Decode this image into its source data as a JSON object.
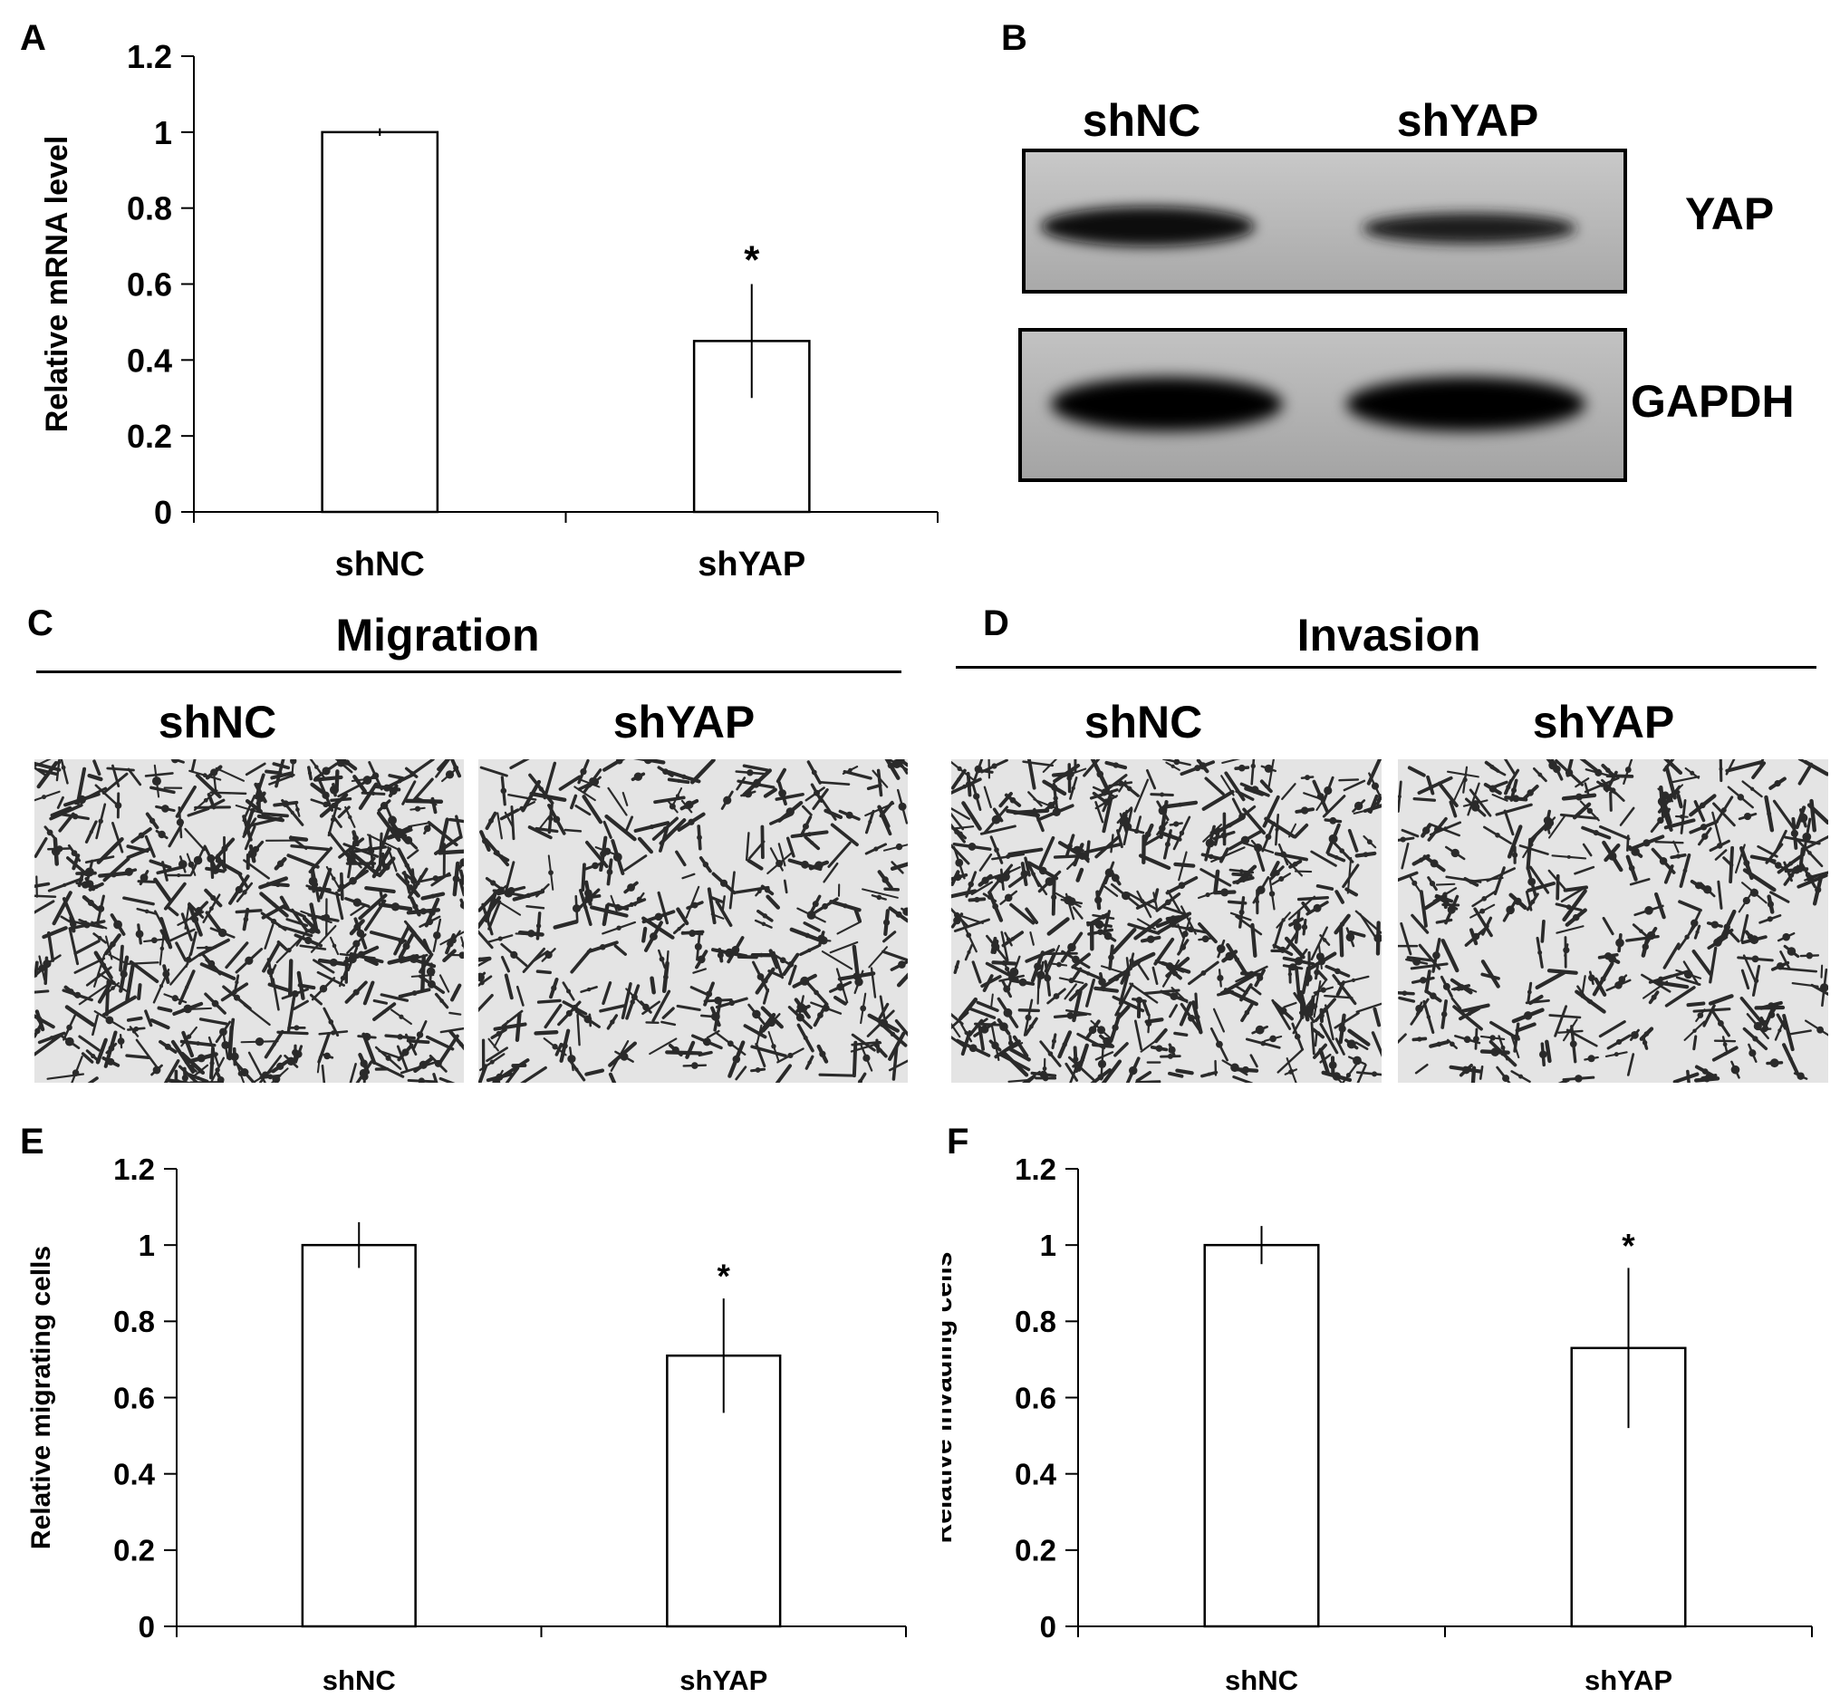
{
  "panels": {
    "A": {
      "letter": "A",
      "chart": {
        "type": "bar",
        "categories": [
          "shNC",
          "shYAP"
        ],
        "values": [
          1.0,
          0.45
        ],
        "errors": [
          0.01,
          0.15
        ],
        "significance": [
          "",
          "*"
        ],
        "ylabel": "Relative  mRNA level",
        "ylim": [
          0,
          1.2
        ],
        "yticks": [
          "0",
          "0.2",
          "0.4",
          "0.6",
          "0.8",
          "1",
          "1.2"
        ]
      }
    },
    "B": {
      "letter": "B",
      "lanes": [
        "shNC",
        "shYAP"
      ],
      "bands": [
        {
          "label": "YAP",
          "intensity": [
            0.9,
            0.75
          ]
        },
        {
          "label": "GAPDH",
          "intensity": [
            1.0,
            1.0
          ]
        }
      ]
    },
    "C": {
      "letter": "C",
      "title": "Migration",
      "lanes": [
        "shNC",
        "shYAP"
      ],
      "density": [
        1.0,
        0.7
      ]
    },
    "D": {
      "letter": "D",
      "title": "Invasion",
      "lanes": [
        "shNC",
        "shYAP"
      ],
      "density": [
        1.0,
        0.72
      ]
    },
    "E": {
      "letter": "E",
      "chart": {
        "type": "bar",
        "categories": [
          "shNC",
          "shYAP"
        ],
        "values": [
          1.0,
          0.71
        ],
        "errors": [
          0.06,
          0.15
        ],
        "significance": [
          "",
          "*"
        ],
        "ylabel": "Relative migrating cells",
        "ylim": [
          0,
          1.2
        ],
        "yticks": [
          "0",
          "0.2",
          "0.4",
          "0.6",
          "0.8",
          "1",
          "1.2"
        ]
      }
    },
    "F": {
      "letter": "F",
      "chart": {
        "type": "bar",
        "categories": [
          "shNC",
          "shYAP"
        ],
        "values": [
          1.0,
          0.73
        ],
        "errors": [
          0.05,
          0.21
        ],
        "significance": [
          "",
          "*"
        ],
        "ylabel": "Relative invading cells",
        "ylim": [
          0,
          1.2
        ],
        "yticks": [
          "0",
          "0.2",
          "0.4",
          "0.6",
          "0.8",
          "1",
          "1.2"
        ]
      }
    }
  },
  "chart_data": [
    {
      "type": "bar",
      "categories": [
        "shNC",
        "shYAP"
      ],
      "values": [
        1.0,
        0.45
      ],
      "errors": [
        0.01,
        0.15
      ],
      "ylabel": "Relative  mRNA level",
      "ylim": [
        0,
        1.2
      ],
      "annotations": [
        "*"
      ]
    },
    {
      "type": "bar",
      "categories": [
        "shNC",
        "shYAP"
      ],
      "values": [
        1.0,
        0.71
      ],
      "errors": [
        0.06,
        0.15
      ],
      "ylabel": "Relative migrating cells",
      "ylim": [
        0,
        1.2
      ],
      "annotations": [
        "*"
      ]
    },
    {
      "type": "bar",
      "categories": [
        "shNC",
        "shYAP"
      ],
      "values": [
        1.0,
        0.73
      ],
      "errors": [
        0.05,
        0.21
      ],
      "ylabel": "Relative invading cells",
      "ylim": [
        0,
        1.2
      ],
      "annotations": [
        "*"
      ]
    }
  ],
  "colors": {
    "ink": "#000000",
    "background": "#ffffff",
    "micro_bg": "#e4e4e4",
    "cell": "#2a2a2a"
  }
}
